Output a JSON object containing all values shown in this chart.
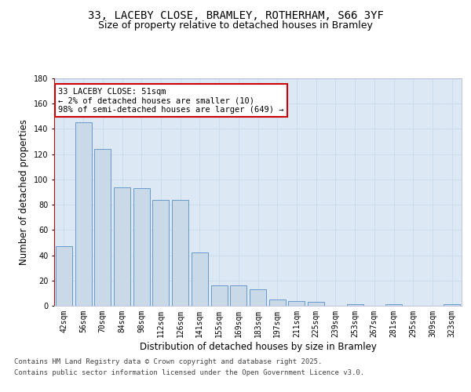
{
  "title_line1": "33, LACEBY CLOSE, BRAMLEY, ROTHERHAM, S66 3YF",
  "title_line2": "Size of property relative to detached houses in Bramley",
  "xlabel": "Distribution of detached houses by size in Bramley",
  "ylabel": "Number of detached properties",
  "categories": [
    "42sqm",
    "56sqm",
    "70sqm",
    "84sqm",
    "98sqm",
    "112sqm",
    "126sqm",
    "141sqm",
    "155sqm",
    "169sqm",
    "183sqm",
    "197sqm",
    "211sqm",
    "225sqm",
    "239sqm",
    "253sqm",
    "267sqm",
    "281sqm",
    "295sqm",
    "309sqm",
    "323sqm"
  ],
  "values": [
    47,
    145,
    124,
    94,
    93,
    84,
    84,
    42,
    16,
    16,
    13,
    5,
    4,
    3,
    0,
    1,
    0,
    1,
    0,
    0,
    1
  ],
  "bar_color": "#c9d9e8",
  "bar_edgecolor": "#6699cc",
  "highlight_color": "#cc0000",
  "annotation_line1": "33 LACEBY CLOSE: 51sqm",
  "annotation_line2": "← 2% of detached houses are smaller (10)",
  "annotation_line3": "98% of semi-detached houses are larger (649) →",
  "annotation_box_color": "#cc0000",
  "ylim": [
    0,
    180
  ],
  "yticks": [
    0,
    20,
    40,
    60,
    80,
    100,
    120,
    140,
    160,
    180
  ],
  "grid_color": "#ccddee",
  "background_color": "#dce9f5",
  "footer_line1": "Contains HM Land Registry data © Crown copyright and database right 2025.",
  "footer_line2": "Contains public sector information licensed under the Open Government Licence v3.0.",
  "title_fontsize": 10,
  "subtitle_fontsize": 9,
  "axis_label_fontsize": 8.5,
  "tick_fontsize": 7,
  "annotation_fontsize": 7.5,
  "footer_fontsize": 6.5
}
